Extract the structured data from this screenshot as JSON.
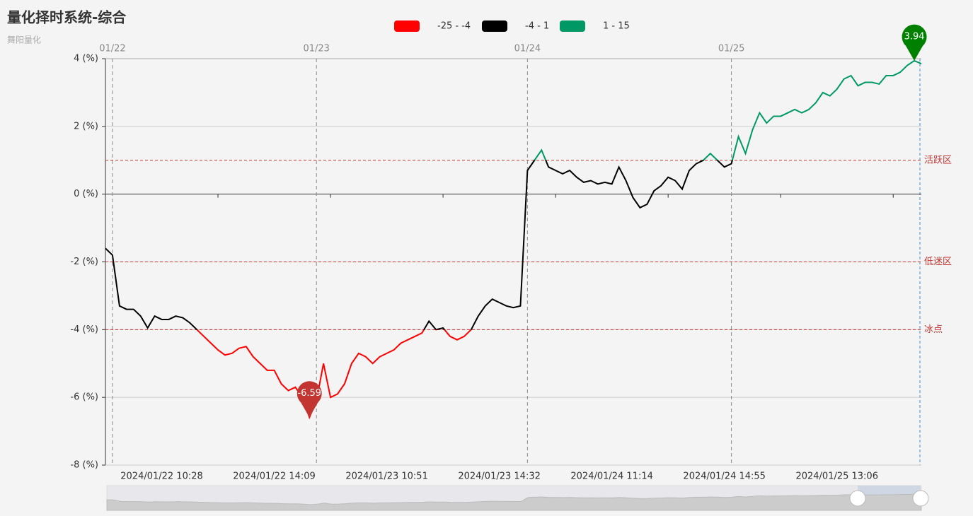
{
  "chart_data": {
    "type": "line",
    "title": "量化择时系统-综合",
    "subtitle": "舞阳量化",
    "categories": [
      null,
      null,
      null,
      null,
      null,
      null,
      null,
      null,
      "2024/01/22 10:28",
      null,
      null,
      null,
      null,
      null,
      null,
      null,
      null,
      null,
      null,
      null,
      null,
      null,
      null,
      null,
      "2024/01/22 14:09",
      null,
      null,
      null,
      null,
      null,
      null,
      null,
      null,
      null,
      null,
      null,
      null,
      null,
      null,
      null,
      "2024/01/23 10:51",
      null,
      null,
      null,
      null,
      null,
      null,
      null,
      null,
      null,
      null,
      null,
      null,
      null,
      null,
      null,
      "2024/01/23 14:32",
      null,
      null,
      null,
      null,
      null,
      null,
      null,
      null,
      null,
      null,
      null,
      null,
      null,
      null,
      null,
      "2024/01/24 11:14",
      null,
      null,
      null,
      null,
      null,
      null,
      null,
      null,
      null,
      null,
      null,
      null,
      null,
      null,
      null,
      "2024/01/24 14:55",
      null,
      null,
      null,
      null,
      null,
      null,
      null,
      null,
      null,
      null,
      null,
      null,
      null,
      null,
      null,
      "2024/01/25 13:06",
      null,
      null,
      null,
      null,
      null,
      null,
      null,
      null,
      null,
      null,
      null,
      null
    ],
    "top_categories": [
      null,
      "01/22",
      null,
      null,
      null,
      null,
      null,
      null,
      null,
      null,
      null,
      null,
      null,
      null,
      null,
      null,
      null,
      null,
      null,
      null,
      null,
      null,
      null,
      null,
      null,
      null,
      null,
      null,
      null,
      null,
      "01/23",
      null,
      null,
      null,
      null,
      null,
      null,
      null,
      null,
      null,
      null,
      null,
      null,
      null,
      null,
      null,
      null,
      null,
      null,
      null,
      null,
      null,
      null,
      null,
      null,
      null,
      null,
      null,
      null,
      null,
      "01/24",
      null,
      null,
      null,
      null,
      null,
      null,
      null,
      null,
      null,
      null,
      null,
      null,
      null,
      null,
      null,
      null,
      null,
      null,
      null,
      null,
      null,
      null,
      null,
      null,
      null,
      null,
      null,
      null,
      "01/25",
      null,
      null,
      null,
      null,
      null,
      null,
      null,
      null,
      null,
      null,
      null,
      null,
      null,
      null,
      null,
      null,
      null,
      null,
      null,
      null,
      null,
      null,
      null,
      null,
      null,
      null,
      null
    ],
    "values": [
      -1.6,
      -1.8,
      -3.3,
      -3.4,
      -3.4,
      -3.6,
      -3.95,
      -3.6,
      -3.7,
      -3.7,
      -3.6,
      -3.65,
      -3.8,
      -4.0,
      -4.2,
      -4.4,
      -4.6,
      -4.75,
      -4.7,
      -4.55,
      -4.5,
      -4.8,
      -5.0,
      -5.2,
      -5.2,
      -5.6,
      -5.8,
      -5.7,
      -6.0,
      -6.59,
      -6.1,
      -5.0,
      -6.0,
      -5.9,
      -5.6,
      -5.0,
      -4.7,
      -4.8,
      -5.0,
      -4.8,
      -4.7,
      -4.6,
      -4.4,
      -4.3,
      -4.2,
      -4.1,
      -3.75,
      -4.0,
      -3.95,
      -4.2,
      -4.3,
      -4.2,
      -4.0,
      -3.6,
      -3.3,
      -3.1,
      -3.2,
      -3.3,
      -3.35,
      -3.3,
      0.7,
      1.0,
      1.3,
      0.8,
      0.7,
      0.6,
      0.7,
      0.5,
      0.35,
      0.4,
      0.3,
      0.35,
      0.3,
      0.8,
      0.4,
      -0.1,
      -0.4,
      -0.3,
      0.1,
      0.25,
      0.5,
      0.4,
      0.15,
      0.7,
      0.9,
      1.0,
      1.2,
      1.0,
      0.8,
      0.9,
      1.7,
      1.2,
      1.9,
      2.4,
      2.1,
      2.3,
      2.3,
      2.4,
      2.5,
      2.4,
      2.5,
      2.7,
      3.0,
      2.9,
      3.1,
      3.4,
      3.5,
      3.2,
      3.3,
      3.3,
      3.25,
      3.5,
      3.5,
      3.6,
      3.8,
      3.94,
      3.85
    ],
    "ylim": [
      -8,
      4
    ],
    "yticks": [
      {
        "value": -8,
        "label": "-8 (%)"
      },
      {
        "value": -6,
        "label": "-6 (%)"
      },
      {
        "value": -4,
        "label": "-4 (%)"
      },
      {
        "value": -2,
        "label": "-2 (%)"
      },
      {
        "value": 0,
        "label": "0 (%)"
      },
      {
        "value": 2,
        "label": "2 (%)"
      },
      {
        "value": 4,
        "label": "4 (%)"
      }
    ],
    "grid": true,
    "pieces": [
      {
        "min": -25,
        "max": -4,
        "label": "-25 - -4",
        "color": "#ff0000"
      },
      {
        "min": -4,
        "max": 1,
        "label": "-4 - 1",
        "color": "#000000"
      },
      {
        "min": 1,
        "max": 15,
        "label": "1 - 15",
        "color": "#009966"
      }
    ],
    "mark_lines": [
      {
        "value": 1,
        "label": "活跃区"
      },
      {
        "value": -2,
        "label": "低迷区"
      },
      {
        "value": -4,
        "label": "冰点"
      }
    ],
    "mark_line_color": "#c23531",
    "min_pin_color": "#c23531",
    "max_pin_color": "#008000"
  }
}
